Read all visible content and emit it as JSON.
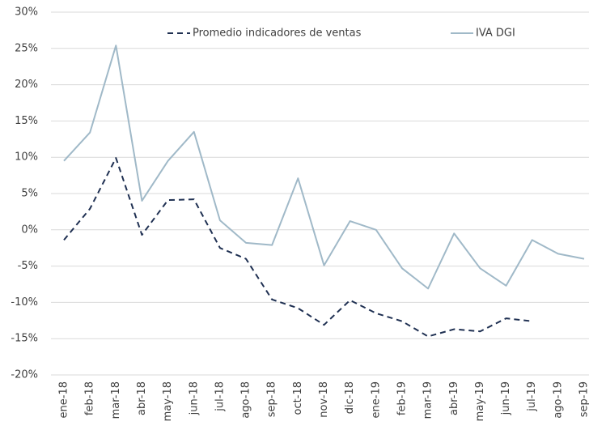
{
  "chart_data": {
    "type": "line",
    "categories": [
      "ene-18",
      "feb-18",
      "mar-18",
      "abr-18",
      "may-18",
      "jun-18",
      "jul-18",
      "ago-18",
      "sep-18",
      "oct-18",
      "nov-18",
      "dic-18",
      "ene-19",
      "feb-19",
      "mar-19",
      "abr-19",
      "may-19",
      "jun-19",
      "jul-19",
      "ago-19",
      "sep-19"
    ],
    "series": [
      {
        "name": "Promedio indicadores de ventas",
        "color": "#1f3052",
        "dashed": true,
        "values": [
          -1.4,
          2.9,
          9.9,
          -0.7,
          4.1,
          4.2,
          -2.5,
          -4.0,
          -9.6,
          -10.8,
          -13.1,
          -9.7,
          -11.5,
          -12.6,
          -14.7,
          -13.7,
          -14.0,
          -12.2,
          -12.6,
          null,
          null
        ]
      },
      {
        "name": "IVA DGI",
        "color": "#a0b9c8",
        "dashed": false,
        "values": [
          9.5,
          13.4,
          25.4,
          4.0,
          9.5,
          13.5,
          1.3,
          -1.8,
          -2.1,
          7.1,
          -4.9,
          1.2,
          0.0,
          -5.3,
          -8.1,
          -0.5,
          -5.3,
          -7.7,
          -1.4,
          -3.3,
          -4.0
        ]
      }
    ],
    "ylim": [
      -20,
      30
    ],
    "yticks": [
      {
        "value": -20,
        "label": "-20%"
      },
      {
        "value": -15,
        "label": "-15%"
      },
      {
        "value": -10,
        "label": "-10%"
      },
      {
        "value": -5,
        "label": "-5%"
      },
      {
        "value": 0,
        "label": "0%"
      },
      {
        "value": 5,
        "label": "5%"
      },
      {
        "value": 10,
        "label": "10%"
      },
      {
        "value": 15,
        "label": "15%"
      },
      {
        "value": 20,
        "label": "20%"
      },
      {
        "value": 25,
        "label": "25%"
      },
      {
        "value": 30,
        "label": "30%"
      }
    ],
    "grid": true,
    "legend": "top"
  }
}
